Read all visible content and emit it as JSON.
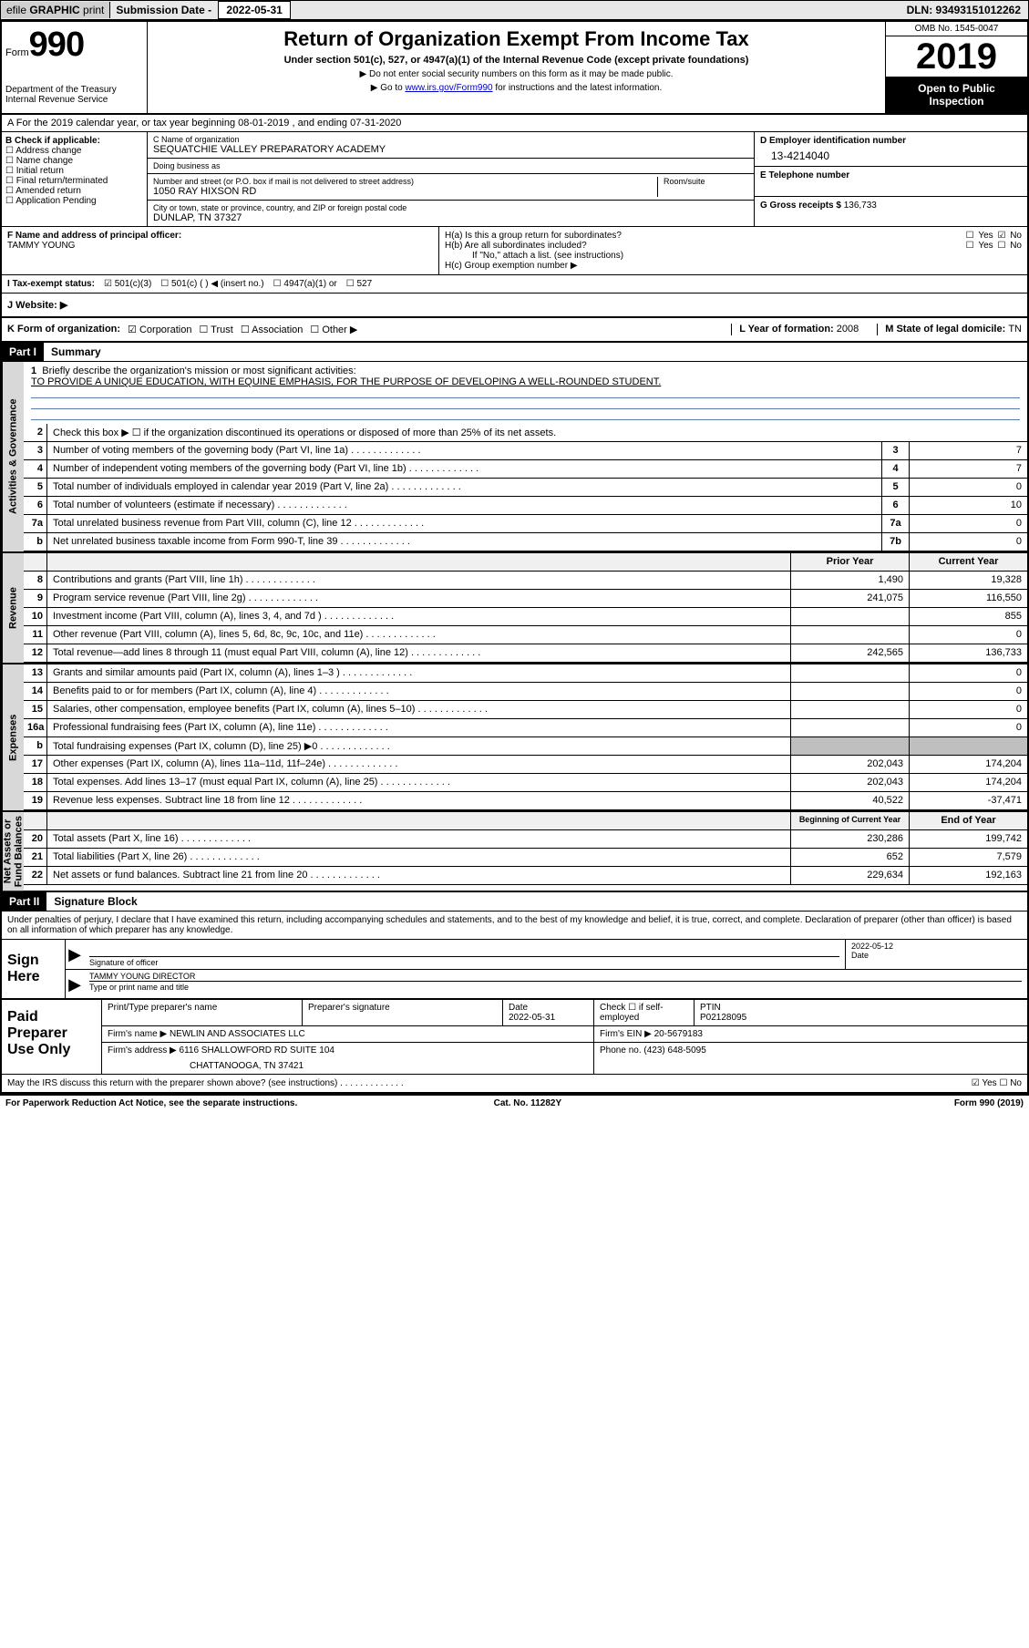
{
  "topbar": {
    "efile_prefix": "efile",
    "efile_bold": "GRAPHIC",
    "efile_suffix": "print",
    "sub_label": "Submission Date",
    "sub_date": "2022-05-31",
    "dln": "DLN: 93493151012262"
  },
  "header": {
    "form_word": "Form",
    "form_num": "990",
    "dept1": "Department of the Treasury",
    "dept2": "Internal Revenue Service",
    "title": "Return of Organization Exempt From Income Tax",
    "under": "Under section 501(c), 527, or 4947(a)(1) of the Internal Revenue Code (except private foundations)",
    "note1": "Do not enter social security numbers on this form as it may be made public.",
    "note2_a": "Go to ",
    "note2_link": "www.irs.gov/Form990",
    "note2_b": " for instructions and the latest information.",
    "omb": "OMB No. 1545-0047",
    "year": "2019",
    "open1": "Open to Public",
    "open2": "Inspection"
  },
  "period": {
    "line": "A For the 2019 calendar year, or tax year beginning 08-01-2019    , and ending 07-31-2020"
  },
  "boxB": {
    "title": "B Check if applicable:",
    "o1": "Address change",
    "o2": "Name change",
    "o3": "Initial return",
    "o4": "Final return/terminated",
    "o5": "Amended return",
    "o6": "Application Pending"
  },
  "boxC": {
    "nameLbl": "C Name of organization",
    "name": "SEQUATCHIE VALLEY PREPARATORY ACADEMY",
    "dbaLbl": "Doing business as",
    "dba": "",
    "addrLbl": "Number and street (or P.O. box if mail is not delivered to street address)",
    "roomLbl": "Room/suite",
    "addr": "1050 RAY HIXSON RD",
    "cityLbl": "City or town, state or province, country, and ZIP or foreign postal code",
    "city": "DUNLAP, TN  37327"
  },
  "boxD": {
    "lbl": "D Employer identification number",
    "val": "13-4214040"
  },
  "boxE": {
    "lbl": "E Telephone number",
    "val": ""
  },
  "boxG": {
    "lbl": "G Gross receipts $",
    "val": "136,733"
  },
  "boxF": {
    "lbl": "F  Name and address of principal officer:",
    "name": "TAMMY YOUNG"
  },
  "boxH": {
    "a": "H(a)  Is this a group return for subordinates?",
    "b": "H(b)  Are all subordinates included?",
    "bnote": "If \"No,\" attach a list. (see instructions)",
    "c": "H(c)  Group exemption number ▶",
    "yes": "Yes",
    "no": "No"
  },
  "taxrow": {
    "lblI": "I  Tax-exempt status:",
    "o1": "501(c)(3)",
    "o2": "501(c) (  ) ◀ (insert no.)",
    "o3": "4947(a)(1) or",
    "o4": "527"
  },
  "boxJ": {
    "lbl": "J  Website: ▶"
  },
  "korg": {
    "k": "K Form of organization:",
    "o1": "Corporation",
    "o2": "Trust",
    "o3": "Association",
    "o4": "Other ▶",
    "l": "L Year of formation: ",
    "lval": "2008",
    "m": "M State of legal domicile: ",
    "mval": "TN"
  },
  "part1": {
    "hdr": "Part I",
    "title": "Summary"
  },
  "vlabels": {
    "act": "Activities & Governance",
    "rev": "Revenue",
    "exp": "Expenses",
    "net": "Net Assets or\nFund Balances"
  },
  "brief": {
    "n": "1",
    "lbl": "Briefly describe the organization's mission or most significant activities:",
    "text": "TO PROVIDE A UNIQUE EDUCATION, WITH EQUINE EMPHASIS, FOR THE PURPOSE OF DEVELOPING A WELL-ROUNDED STUDENT."
  },
  "lines_act": [
    {
      "n": "2",
      "d": "Check this box ▶ ☐  if the organization discontinued its operations or disposed of more than 25% of its net assets.",
      "b": "",
      "a": ""
    },
    {
      "n": "3",
      "d": "Number of voting members of the governing body (Part VI, line 1a)",
      "b": "3",
      "a": "7"
    },
    {
      "n": "4",
      "d": "Number of independent voting members of the governing body (Part VI, line 1b)",
      "b": "4",
      "a": "7"
    },
    {
      "n": "5",
      "d": "Total number of individuals employed in calendar year 2019 (Part V, line 2a)",
      "b": "5",
      "a": "0"
    },
    {
      "n": "6",
      "d": "Total number of volunteers (estimate if necessary)",
      "b": "6",
      "a": "10"
    },
    {
      "n": "7a",
      "d": "Total unrelated business revenue from Part VIII, column (C), line 12",
      "b": "7a",
      "a": "0"
    },
    {
      "n": "b",
      "d": "Net unrelated business taxable income from Form 990-T, line 39",
      "b": "7b",
      "a": "0"
    }
  ],
  "rev_hdr": {
    "py": "Prior Year",
    "cy": "Current Year"
  },
  "lines_rev": [
    {
      "n": "8",
      "d": "Contributions and grants (Part VIII, line 1h)",
      "p": "1,490",
      "c": "19,328"
    },
    {
      "n": "9",
      "d": "Program service revenue (Part VIII, line 2g)",
      "p": "241,075",
      "c": "116,550"
    },
    {
      "n": "10",
      "d": "Investment income (Part VIII, column (A), lines 3, 4, and 7d )",
      "p": "",
      "c": "855"
    },
    {
      "n": "11",
      "d": "Other revenue (Part VIII, column (A), lines 5, 6d, 8c, 9c, 10c, and 11e)",
      "p": "",
      "c": "0"
    },
    {
      "n": "12",
      "d": "Total revenue—add lines 8 through 11 (must equal Part VIII, column (A), line 12)",
      "p": "242,565",
      "c": "136,733"
    }
  ],
  "lines_exp": [
    {
      "n": "13",
      "d": "Grants and similar amounts paid (Part IX, column (A), lines 1–3 )",
      "p": "",
      "c": "0"
    },
    {
      "n": "14",
      "d": "Benefits paid to or for members (Part IX, column (A), line 4)",
      "p": "",
      "c": "0"
    },
    {
      "n": "15",
      "d": "Salaries, other compensation, employee benefits (Part IX, column (A), lines 5–10)",
      "p": "",
      "c": "0"
    },
    {
      "n": "16a",
      "d": "Professional fundraising fees (Part IX, column (A), line 11e)",
      "p": "",
      "c": "0"
    },
    {
      "n": "b",
      "d": "Total fundraising expenses (Part IX, column (D), line 25) ▶0",
      "p": "shade",
      "c": "shade"
    },
    {
      "n": "17",
      "d": "Other expenses (Part IX, column (A), lines 11a–11d, 11f–24e)",
      "p": "202,043",
      "c": "174,204"
    },
    {
      "n": "18",
      "d": "Total expenses. Add lines 13–17 (must equal Part IX, column (A), line 25)",
      "p": "202,043",
      "c": "174,204"
    },
    {
      "n": "19",
      "d": "Revenue less expenses. Subtract line 18 from line 12",
      "p": "40,522",
      "c": "-37,471"
    }
  ],
  "net_hdr": {
    "py": "Beginning of Current Year",
    "cy": "End of Year"
  },
  "lines_net": [
    {
      "n": "20",
      "d": "Total assets (Part X, line 16)",
      "p": "230,286",
      "c": "199,742"
    },
    {
      "n": "21",
      "d": "Total liabilities (Part X, line 26)",
      "p": "652",
      "c": "7,579"
    },
    {
      "n": "22",
      "d": "Net assets or fund balances. Subtract line 21 from line 20",
      "p": "229,634",
      "c": "192,163"
    }
  ],
  "part2": {
    "hdr": "Part II",
    "title": "Signature Block"
  },
  "penalty": "Under penalties of perjury, I declare that I have examined this return, including accompanying schedules and statements, and to the best of my knowledge and belief, it is true, correct, and complete. Declaration of preparer (other than officer) is based on all information of which preparer has any knowledge.",
  "sign": {
    "here": "Sign Here",
    "sigoff": "Signature of officer",
    "date": "2022-05-12",
    "datelbl": "Date",
    "name": "TAMMY YOUNG  DIRECTOR",
    "namelbl": "Type or print name and title"
  },
  "prep": {
    "lbl": "Paid Preparer Use Only",
    "r1c1": "Print/Type preparer's name",
    "r1c2": "Preparer's signature",
    "r1c3lbl": "Date",
    "r1c3": "2022-05-31",
    "r1c4": "Check ☐ if self-employed",
    "r1c5lbl": "PTIN",
    "r1c5": "P02128095",
    "r2a": "Firm's name    ▶",
    "r2b": "NEWLIN AND ASSOCIATES LLC",
    "r2c": "Firm's EIN ▶",
    "r2d": "20-5679183",
    "r3a": "Firm's address ▶",
    "r3b": "6116 SHALLOWFORD RD SUITE 104",
    "r3b2": "CHATTANOOGA, TN  37421",
    "r3c": "Phone no.",
    "r3d": "(423) 648-5095"
  },
  "footer": {
    "q": "May the IRS discuss this return with the preparer shown above? (see instructions)",
    "yes": "Yes",
    "no": "No"
  },
  "bottom": {
    "left": "For Paperwork Reduction Act Notice, see the separate instructions.",
    "mid": "Cat. No. 11282Y",
    "right": "Form 990 (2019)"
  }
}
